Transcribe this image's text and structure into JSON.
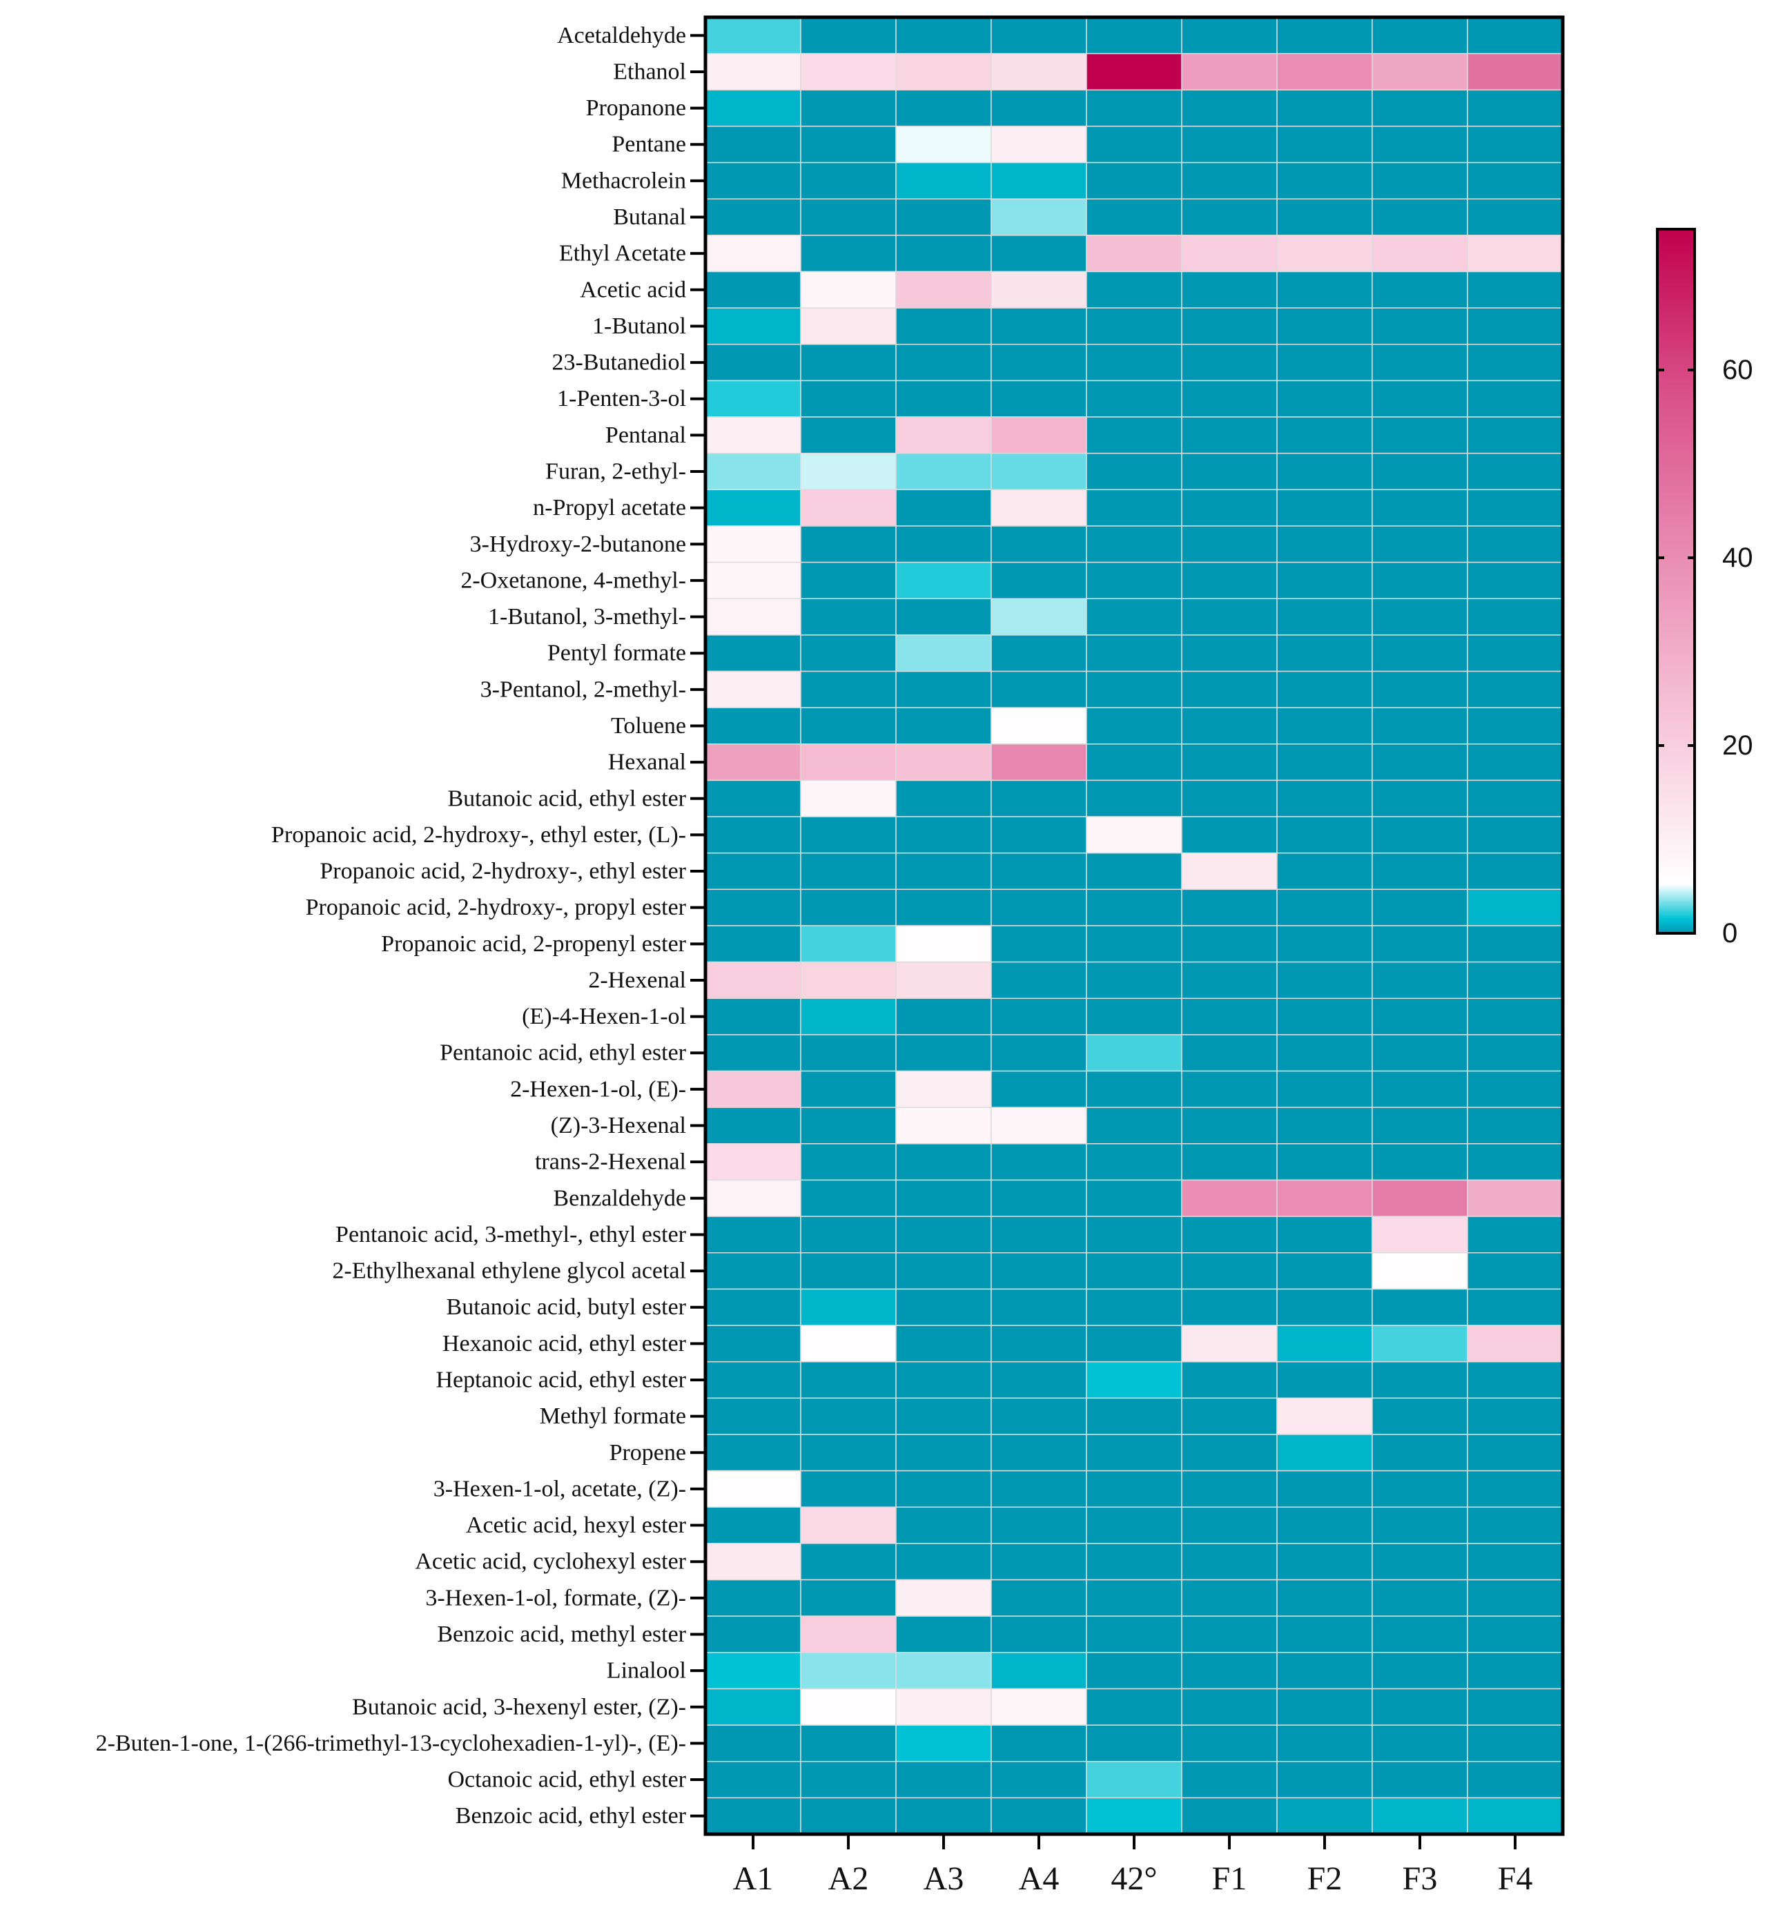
{
  "chart_data": {
    "type": "heatmap",
    "title": "",
    "xlabel": "",
    "ylabel": "",
    "columns": [
      "A1",
      "A2",
      "A3",
      "A4",
      "42°",
      "F1",
      "F2",
      "F3",
      "F4"
    ],
    "rows": [
      "Acetaldehyde",
      "Ethanol",
      "Propanone",
      "Pentane",
      "Methacrolein",
      "Butanal",
      "Ethyl Acetate",
      "Acetic acid",
      "1-Butanol",
      "23-Butanediol",
      "1-Penten-3-ol",
      "Pentanal",
      "Furan, 2-ethyl-",
      "n-Propyl acetate",
      "3-Hydroxy-2-butanone",
      "2-Oxetanone, 4-methyl-",
      "1-Butanol, 3-methyl-",
      "Pentyl formate",
      "3-Pentanol, 2-methyl-",
      "Toluene",
      "Hexanal",
      "Butanoic acid, ethyl ester",
      "Propanoic acid, 2-hydroxy-, ethyl ester, (L)-",
      "Propanoic acid, 2-hydroxy-, ethyl ester",
      "Propanoic acid, 2-hydroxy-, propyl ester",
      "Propanoic acid, 2-propenyl ester",
      "2-Hexenal",
      "(E)-4-Hexen-1-ol",
      "Pentanoic acid, ethyl ester",
      "2-Hexen-1-ol, (E)-",
      "(Z)-3-Hexenal",
      "trans-2-Hexenal",
      "Benzaldehyde",
      "Pentanoic acid, 3-methyl-, ethyl ester",
      "2-Ethylhexanal ethylene glycol acetal",
      "Butanoic acid, butyl ester",
      "Hexanoic acid, ethyl ester",
      "Heptanoic acid, ethyl ester",
      "Methyl formate",
      "Propene",
      "3-Hexen-1-ol, acetate, (Z)-",
      "Acetic acid, hexyl ester",
      "Acetic acid, cyclohexyl ester",
      "3-Hexen-1-ol, formate, (Z)-",
      "Benzoic acid, methyl ester",
      "Linalool",
      "Butanoic acid, 3-hexenyl ester, (Z)-",
      "2-Buten-1-one, 1-(266-trimethyl-13-cyclohexadien-1-yl)-, (E)-",
      "Octanoic acid, ethyl ester",
      "Benzoic acid, ethyl ester"
    ],
    "values": [
      [
        2.5,
        0,
        0,
        0,
        0,
        0,
        0,
        0,
        0
      ],
      [
        10,
        16,
        18,
        15,
        75,
        35,
        40,
        32,
        48
      ],
      [
        1,
        0,
        0,
        0,
        0,
        0,
        0,
        0,
        0
      ],
      [
        0,
        0,
        5,
        10,
        0,
        0,
        0,
        0,
        0
      ],
      [
        0,
        0,
        1,
        1,
        0,
        0,
        0,
        0,
        0
      ],
      [
        0,
        0,
        0,
        3.5,
        0,
        0,
        0,
        0,
        0
      ],
      [
        9,
        0,
        0,
        0,
        25,
        20,
        18,
        20,
        17
      ],
      [
        0,
        8,
        22,
        13,
        0,
        0,
        0,
        0,
        0
      ],
      [
        1,
        12,
        0,
        0,
        0,
        0,
        0,
        0,
        0
      ],
      [
        0,
        0,
        0,
        0,
        0,
        0,
        0,
        0,
        0
      ],
      [
        2,
        0,
        0,
        0,
        0,
        0,
        0,
        0,
        0
      ],
      [
        10,
        0,
        20,
        28,
        0,
        0,
        0,
        0,
        0
      ],
      [
        3.5,
        4.5,
        3,
        3,
        0,
        0,
        0,
        0,
        0
      ],
      [
        1,
        20,
        0,
        12,
        0,
        0,
        0,
        0,
        0
      ],
      [
        8,
        0,
        0,
        0,
        0,
        0,
        0,
        0,
        0
      ],
      [
        8,
        0,
        2,
        0,
        0,
        0,
        0,
        0,
        0
      ],
      [
        9,
        0,
        0,
        4,
        0,
        0,
        0,
        0,
        0
      ],
      [
        0,
        0,
        3.5,
        0,
        0,
        0,
        0,
        0,
        0
      ],
      [
        10,
        0,
        0,
        0,
        0,
        0,
        0,
        0,
        0
      ],
      [
        0,
        0,
        0,
        6,
        0,
        0,
        0,
        0,
        0
      ],
      [
        34,
        26,
        24,
        42,
        0,
        0,
        0,
        0,
        0
      ],
      [
        0,
        8,
        0,
        0,
        0,
        0,
        0,
        0,
        0
      ],
      [
        0,
        0,
        0,
        0,
        8,
        0,
        0,
        0,
        0
      ],
      [
        0,
        0,
        0,
        0,
        0,
        12,
        0,
        0,
        0
      ],
      [
        0,
        0,
        0,
        0,
        0,
        0,
        0,
        0,
        1
      ],
      [
        0,
        2.5,
        6,
        0,
        0,
        0,
        0,
        0,
        0
      ],
      [
        20,
        18,
        15,
        0,
        0,
        0,
        0,
        0,
        0
      ],
      [
        0,
        1,
        0,
        0,
        0,
        0,
        0,
        0,
        0
      ],
      [
        0,
        0,
        0,
        0,
        2.5,
        0,
        0,
        0,
        0
      ],
      [
        22,
        0,
        10,
        0,
        0,
        0,
        0,
        0,
        0
      ],
      [
        0,
        0,
        8,
        8,
        0,
        0,
        0,
        0,
        0
      ],
      [
        16,
        0,
        0,
        0,
        0,
        0,
        0,
        0,
        0
      ],
      [
        9,
        0,
        0,
        0,
        0,
        40,
        40,
        45,
        30
      ],
      [
        0,
        0,
        0,
        0,
        0,
        0,
        0,
        16,
        0
      ],
      [
        0,
        0,
        0,
        0,
        0,
        0,
        0,
        6,
        0
      ],
      [
        0,
        1,
        0,
        0,
        0,
        0,
        0,
        0,
        0
      ],
      [
        0,
        6,
        0,
        0,
        0,
        12,
        1,
        2.5,
        20
      ],
      [
        0,
        0,
        0,
        0,
        1.5,
        0,
        0,
        0,
        0
      ],
      [
        0,
        0,
        0,
        0,
        0,
        0,
        12,
        0,
        0
      ],
      [
        0,
        0,
        0,
        0,
        0,
        0,
        1,
        0,
        0
      ],
      [
        6,
        0,
        0,
        0,
        0,
        0,
        0,
        0,
        0
      ],
      [
        0,
        17,
        0,
        0,
        0,
        0,
        0,
        0,
        0
      ],
      [
        12,
        0,
        0,
        0,
        0,
        0,
        0,
        0,
        0
      ],
      [
        0,
        0,
        10,
        0,
        0,
        0,
        0,
        0,
        0
      ],
      [
        0,
        20,
        0,
        0,
        0,
        0,
        0,
        0,
        0
      ],
      [
        1.5,
        3.5,
        3.5,
        1,
        0,
        0,
        0,
        0,
        0
      ],
      [
        1,
        6,
        10,
        8,
        0,
        0,
        0,
        0,
        0
      ],
      [
        0,
        0,
        1.5,
        0,
        0,
        0,
        0,
        0,
        0
      ],
      [
        0,
        0,
        0,
        0,
        2.5,
        0,
        0,
        0,
        0
      ],
      [
        0,
        0,
        0,
        0,
        1.5,
        0,
        0.5,
        1,
        1
      ]
    ],
    "colorbar": {
      "min": 0,
      "max": 75,
      "ticks": [
        0,
        20,
        40,
        60
      ],
      "tick_labels": [
        "0",
        "20",
        "40",
        "60"
      ],
      "colors": {
        "zero": "#0097b2",
        "low": "#00c2d4",
        "white": "#ffffff",
        "light_pink": "#f7c6d8",
        "pink": "#e889b0",
        "magenta": "#d94d87",
        "max": "#c0004e"
      }
    },
    "background_teal": "#0097b2",
    "cell_border_color": "#dcdcdc"
  }
}
